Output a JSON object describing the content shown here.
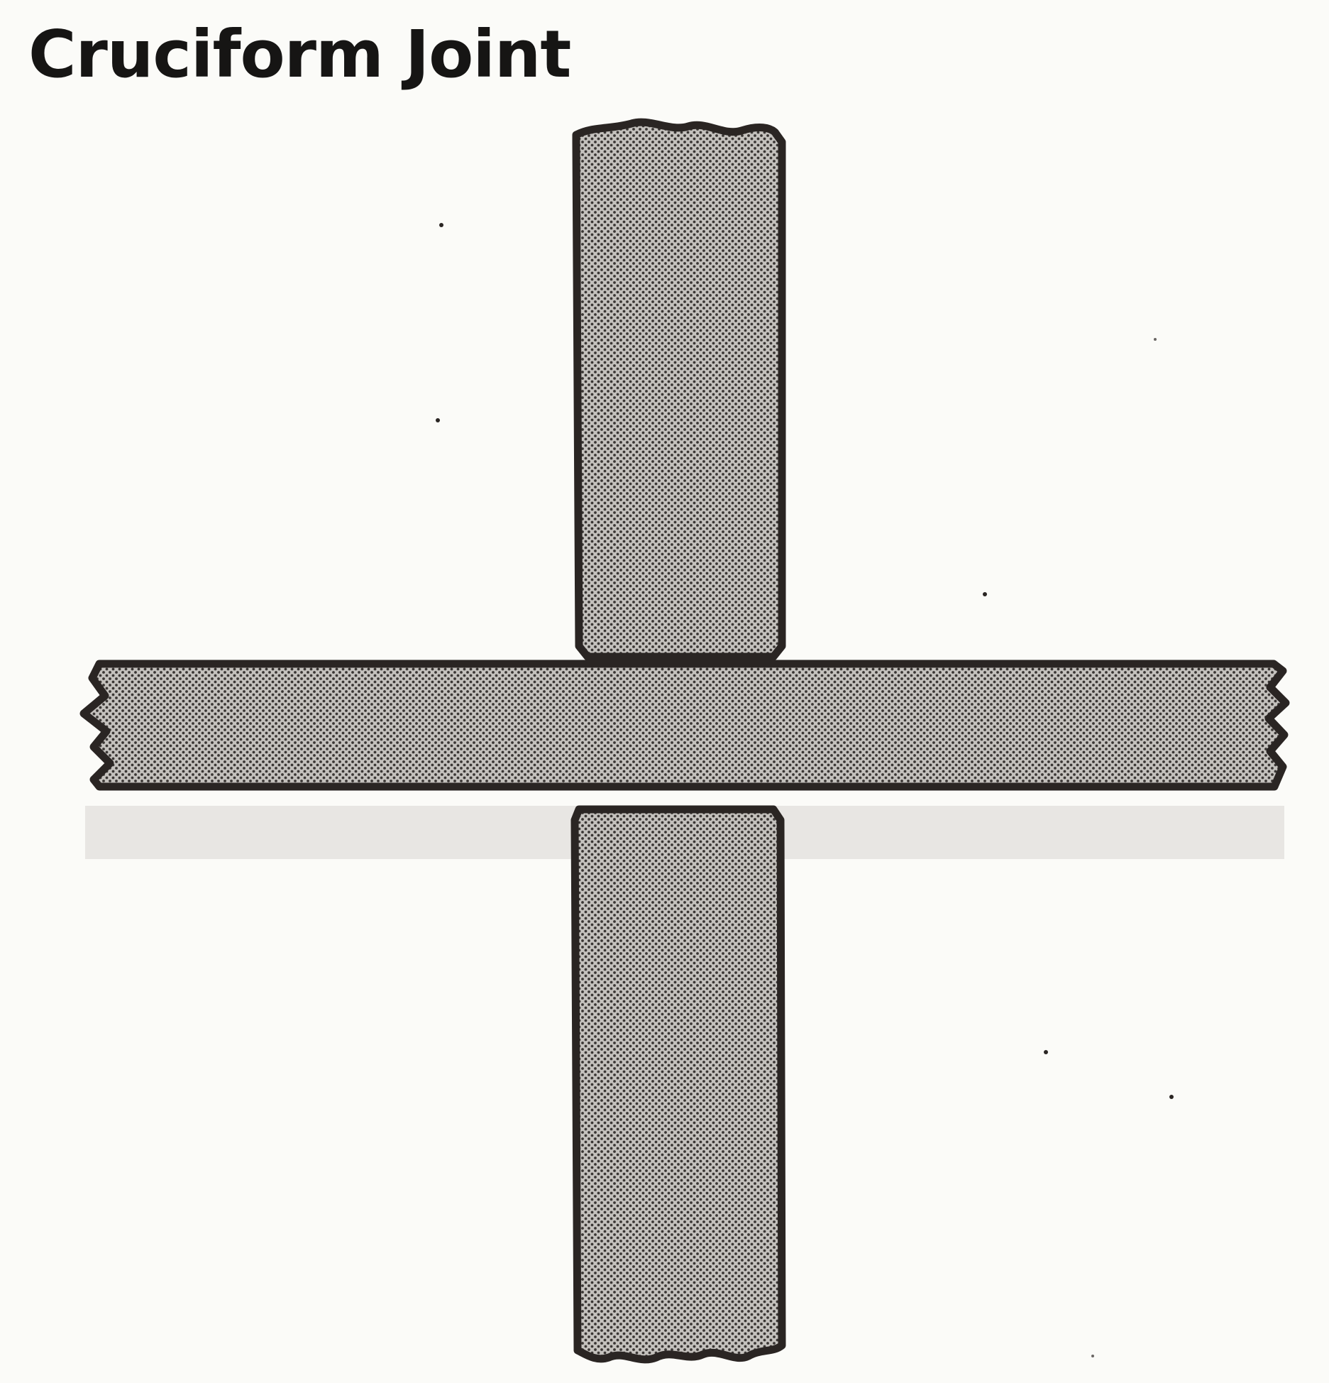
{
  "diagram": {
    "title": "Cruciform Joint",
    "colors": {
      "background": "#fbfbf8",
      "outline": "#2a2523",
      "fill_dot": "#3a3634",
      "fill_base": "#bdbab6"
    }
  }
}
